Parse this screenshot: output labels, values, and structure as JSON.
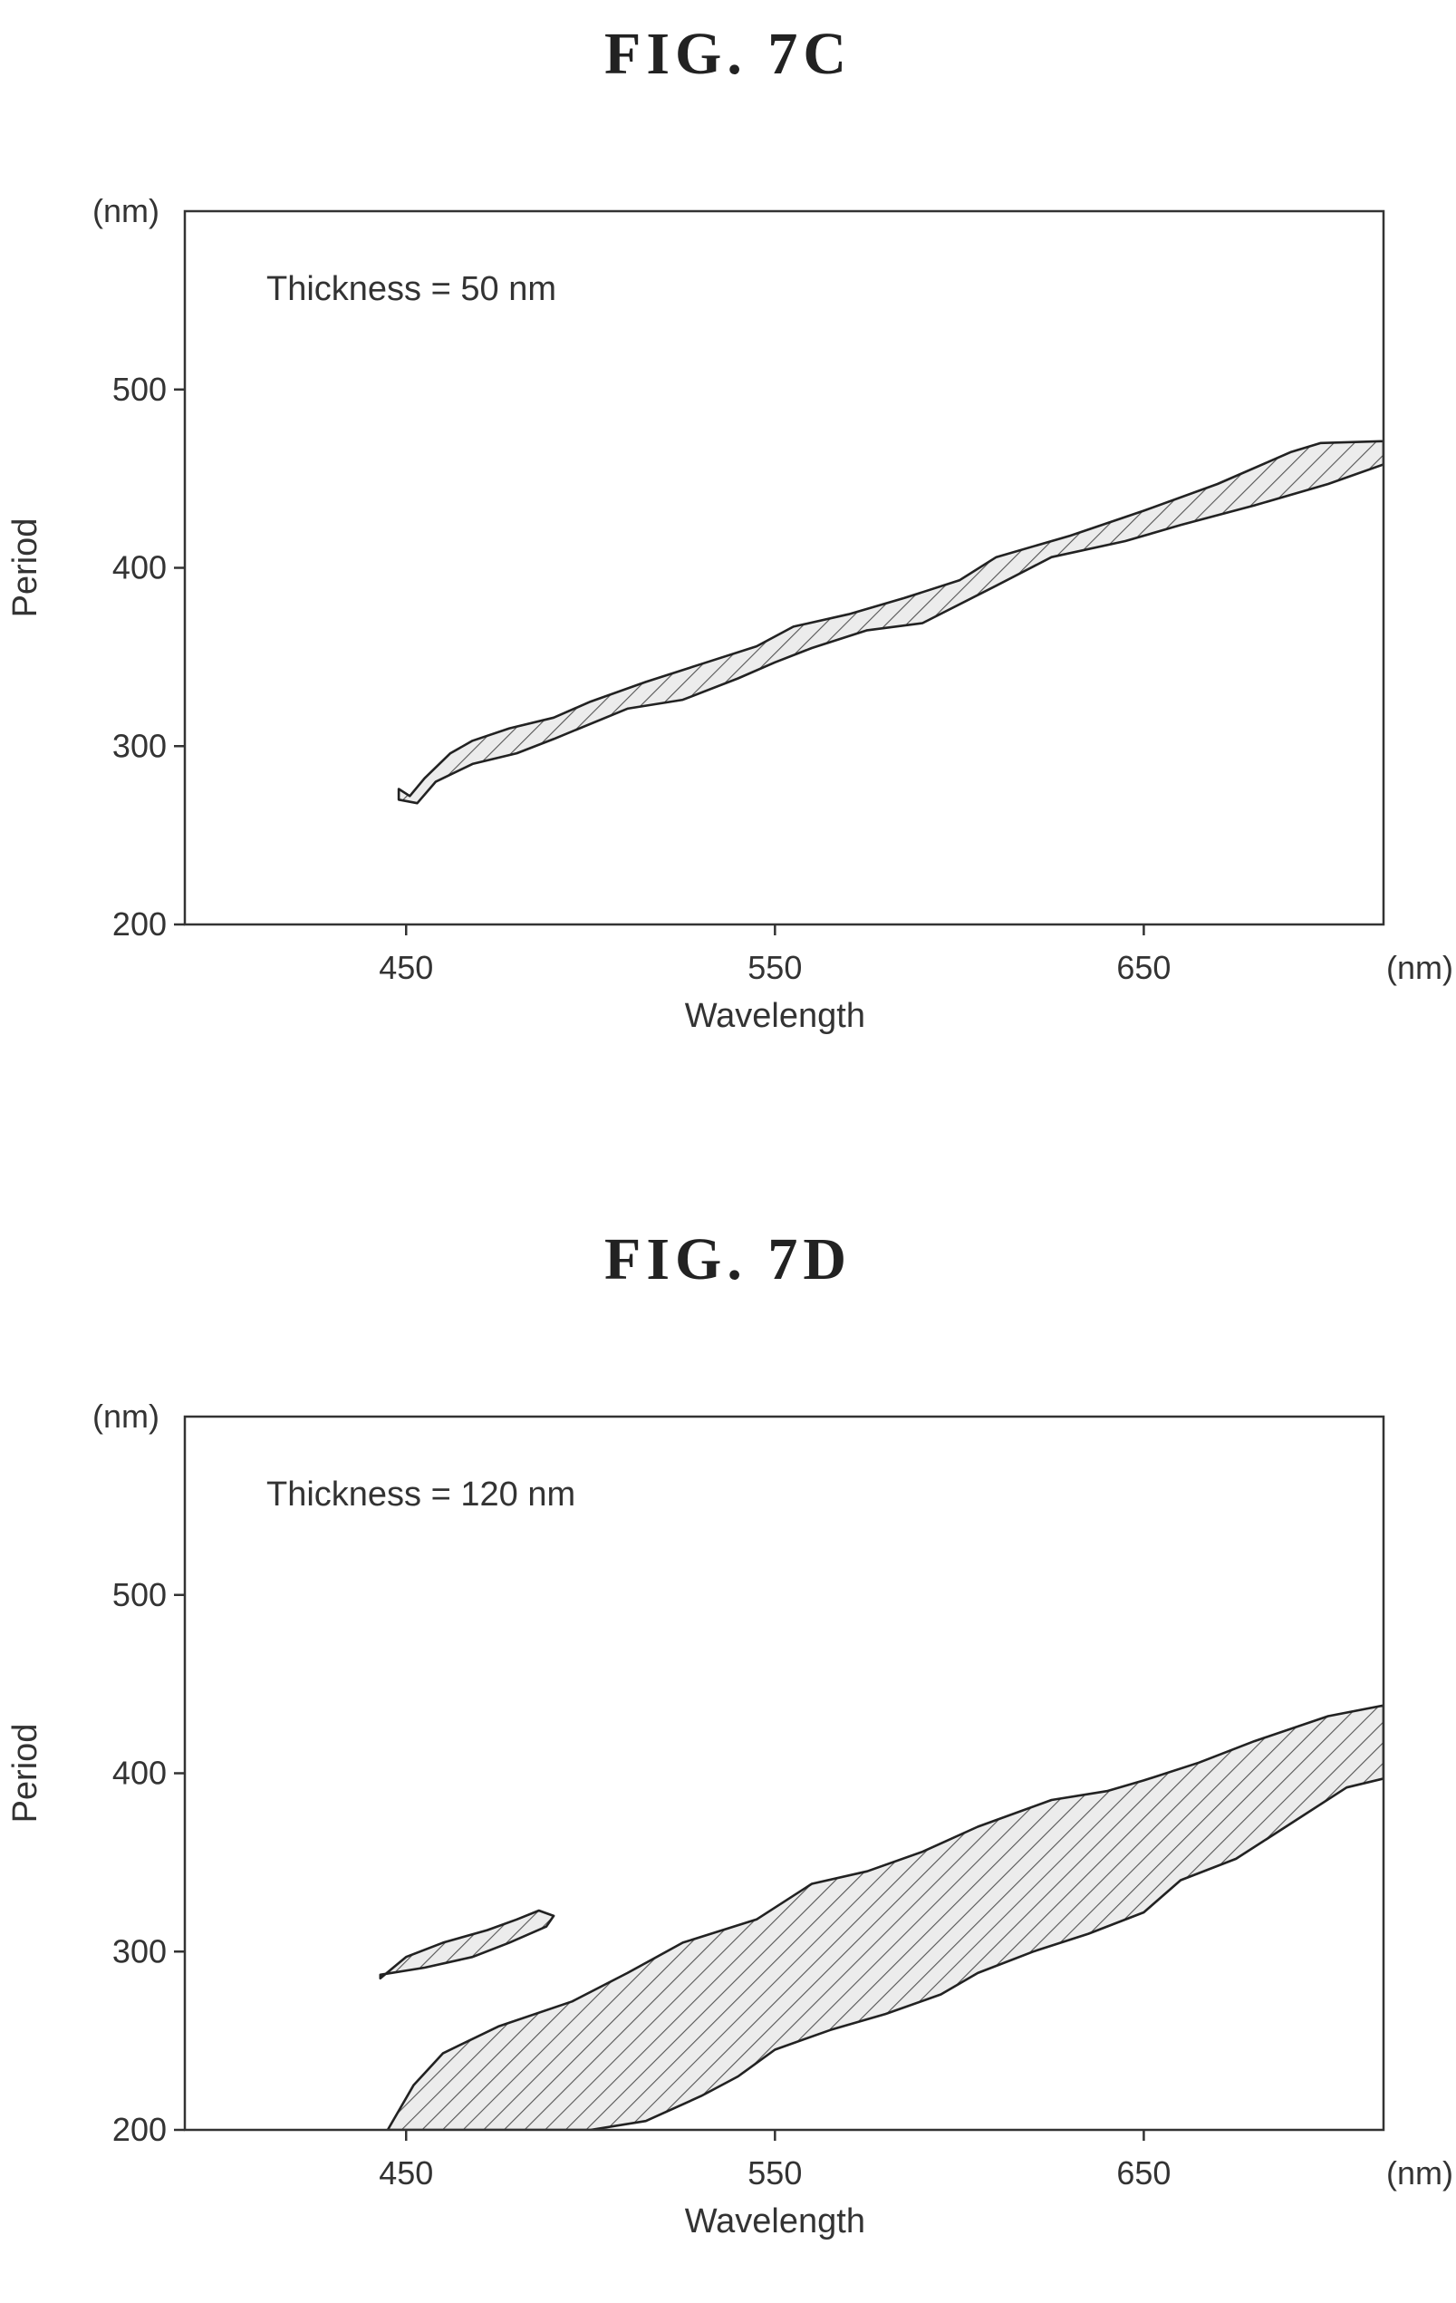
{
  "figures": [
    {
      "title": "FIG. 7C",
      "chart_data": {
        "type": "area",
        "annotation": "Thickness = 50 nm",
        "xlabel": "Wavelength",
        "ylabel": "Period",
        "x_unit": "(nm)",
        "y_unit": "(nm)",
        "xlim": [
          390,
          715
        ],
        "ylim": [
          200,
          600
        ],
        "xticks": [
          "450",
          "550",
          "650"
        ],
        "yticks": [
          "200",
          "300",
          "400",
          "500"
        ],
        "grid": false,
        "series": [
          {
            "hatched": true,
            "upper": [
              [
                451,
                272
              ],
              [
                455,
                282
              ],
              [
                462,
                296
              ],
              [
                468,
                303
              ],
              [
                478,
                310
              ],
              [
                490,
                316
              ],
              [
                500,
                325
              ],
              [
                515,
                336
              ],
              [
                530,
                346
              ],
              [
                545,
                356
              ],
              [
                555,
                367
              ],
              [
                570,
                374
              ],
              [
                585,
                383
              ],
              [
                600,
                393
              ],
              [
                610,
                406
              ],
              [
                630,
                418
              ],
              [
                650,
                432
              ],
              [
                670,
                447
              ],
              [
                690,
                465
              ],
              [
                698,
                470
              ],
              [
                715,
                471
              ]
            ],
            "lower": [
              [
                715,
                458
              ],
              [
                700,
                447
              ],
              [
                680,
                435
              ],
              [
                660,
                424
              ],
              [
                645,
                415
              ],
              [
                625,
                406
              ],
              [
                610,
                390
              ],
              [
                590,
                369
              ],
              [
                575,
                365
              ],
              [
                560,
                355
              ],
              [
                550,
                347
              ],
              [
                540,
                338
              ],
              [
                525,
                326
              ],
              [
                510,
                321
              ],
              [
                490,
                304
              ],
              [
                480,
                296
              ],
              [
                468,
                290
              ],
              [
                458,
                280
              ],
              [
                453,
                268
              ],
              [
                448,
                270
              ],
              [
                448,
                276
              ]
            ]
          }
        ]
      }
    },
    {
      "title": "FIG. 7D",
      "chart_data": {
        "type": "area",
        "annotation": "Thickness = 120 nm",
        "xlabel": "Wavelength",
        "ylabel": "Period",
        "x_unit": "(nm)",
        "y_unit": "(nm)",
        "xlim": [
          390,
          715
        ],
        "ylim": [
          200,
          600
        ],
        "xticks": [
          "450",
          "550",
          "650"
        ],
        "yticks": [
          "200",
          "300",
          "400",
          "500"
        ],
        "grid": false,
        "series": [
          {
            "hatched": true,
            "upper": [
              [
                443,
                285
              ],
              [
                450,
                297
              ],
              [
                460,
                305
              ],
              [
                472,
                312
              ],
              [
                480,
                318
              ],
              [
                486,
                323
              ],
              [
                490,
                320
              ],
              [
                488,
                314
              ],
              [
                478,
                305
              ],
              [
                468,
                297
              ],
              [
                455,
                291
              ],
              [
                443,
                287
              ]
            ],
            "lower": []
          },
          {
            "hatched": true,
            "upper": [
              [
                445,
                200
              ],
              [
                452,
                225
              ],
              [
                460,
                243
              ],
              [
                475,
                258
              ],
              [
                495,
                272
              ],
              [
                510,
                288
              ],
              [
                525,
                305
              ],
              [
                545,
                318
              ],
              [
                560,
                338
              ],
              [
                575,
                345
              ],
              [
                590,
                356
              ],
              [
                605,
                370
              ],
              [
                625,
                385
              ],
              [
                640,
                390
              ],
              [
                650,
                396
              ],
              [
                665,
                406
              ],
              [
                680,
                418
              ],
              [
                700,
                432
              ],
              [
                715,
                438
              ]
            ],
            "lower": [
              [
                715,
                397
              ],
              [
                705,
                392
              ],
              [
                690,
                372
              ],
              [
                675,
                352
              ],
              [
                660,
                340
              ],
              [
                650,
                322
              ],
              [
                635,
                310
              ],
              [
                620,
                300
              ],
              [
                605,
                288
              ],
              [
                595,
                276
              ],
              [
                580,
                265
              ],
              [
                565,
                256
              ],
              [
                550,
                245
              ],
              [
                540,
                230
              ],
              [
                530,
                219
              ],
              [
                515,
                205
              ],
              [
                500,
                200
              ]
            ]
          }
        ]
      }
    }
  ]
}
